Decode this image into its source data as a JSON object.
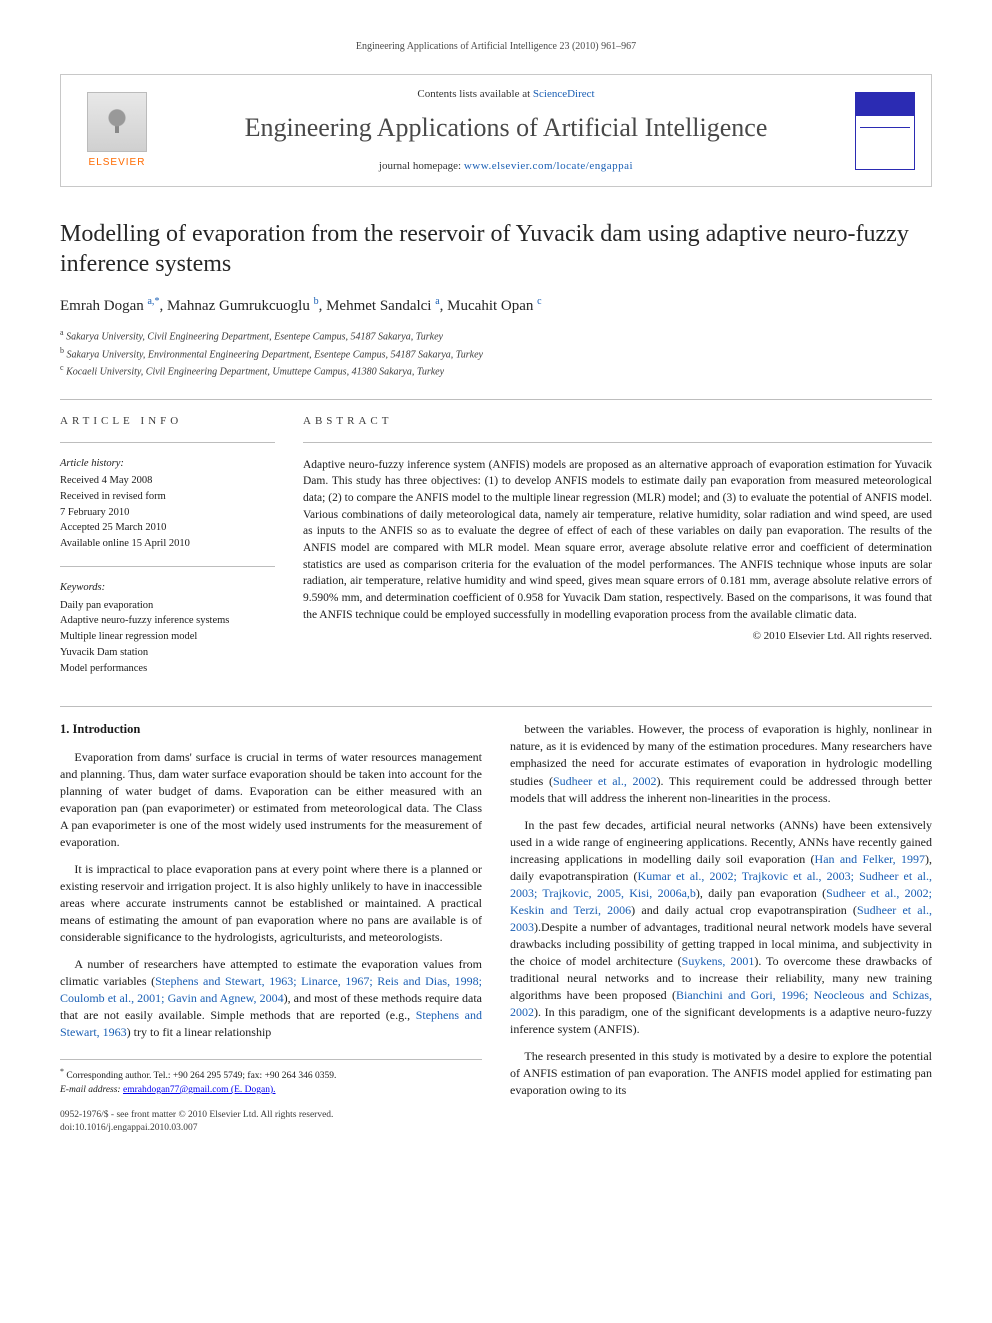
{
  "page_header": "Engineering Applications of Artificial Intelligence 23 (2010) 961–967",
  "banner": {
    "contents_prefix": "Contents lists available at ",
    "contents_link": "ScienceDirect",
    "journal_name": "Engineering Applications of Artificial Intelligence",
    "homepage_prefix": "journal homepage: ",
    "homepage_url": "www.elsevier.com/locate/engappai",
    "publisher": "ELSEVIER"
  },
  "title": "Modelling of evaporation from the reservoir of Yuvacik dam using adaptive neuro-fuzzy inference systems",
  "authors": [
    {
      "name": "Emrah Dogan",
      "affil": "a,",
      "corr": "*"
    },
    {
      "name": "Mahnaz Gumrukcuoglu",
      "affil": "b"
    },
    {
      "name": "Mehmet Sandalci",
      "affil": "a"
    },
    {
      "name": "Mucahit Opan",
      "affil": "c"
    }
  ],
  "affiliations": {
    "a": "Sakarya University, Civil Engineering Department, Esentepe Campus, 54187 Sakarya, Turkey",
    "b": "Sakarya University, Environmental Engineering Department, Esentepe Campus, 54187 Sakarya, Turkey",
    "c": "Kocaeli University, Civil Engineering Department, Umuttepe Campus, 41380 Sakarya, Turkey"
  },
  "info_heading": "ARTICLE INFO",
  "abstract_heading": "ABSTRACT",
  "history_label": "Article history:",
  "history": [
    "Received 4 May 2008",
    "Received in revised form",
    "7 February 2010",
    "Accepted 25 March 2010",
    "Available online 15 April 2010"
  ],
  "keywords_label": "Keywords:",
  "keywords": [
    "Daily pan evaporation",
    "Adaptive neuro-fuzzy inference systems",
    "Multiple linear regression model",
    "Yuvacik Dam station",
    "Model performances"
  ],
  "abstract_text": "Adaptive neuro-fuzzy inference system (ANFIS) models are proposed as an alternative approach of evaporation estimation for Yuvacik Dam. This study has three objectives: (1) to develop ANFIS models to estimate daily pan evaporation from measured meteorological data; (2) to compare the ANFIS model to the multiple linear regression (MLR) model; and (3) to evaluate the potential of ANFIS model. Various combinations of daily meteorological data, namely air temperature, relative humidity, solar radiation and wind speed, are used as inputs to the ANFIS so as to evaluate the degree of effect of each of these variables on daily pan evaporation. The results of the ANFIS model are compared with MLR model. Mean square error, average absolute relative error and coefficient of determination statistics are used as comparison criteria for the evaluation of the model performances. The ANFIS technique whose inputs are solar radiation, air temperature, relative humidity and wind speed, gives mean square errors of 0.181 mm, average absolute relative errors of 9.590% mm, and determination coefficient of 0.958 for Yuvacik Dam station, respectively. Based on the comparisons, it was found that the ANFIS technique could be employed successfully in modelling evaporation process from the available climatic data.",
  "abstract_copyright": "© 2010 Elsevier Ltd. All rights reserved.",
  "section1_heading": "1. Introduction",
  "col_left": [
    "Evaporation from dams' surface is crucial in terms of water resources management and planning. Thus, dam water surface evaporation should be taken into account for the planning of water budget of dams. Evaporation can be either measured with an evaporation pan (pan evaporimeter) or estimated from meteorological data. The Class A pan evaporimeter is one of the most widely used instruments for the measurement of evaporation.",
    "It is impractical to place evaporation pans at every point where there is a planned or existing reservoir and irrigation project. It is also highly unlikely to have in inaccessible areas where accurate instruments cannot be established or maintained. A practical means of estimating the amount of pan evaporation where no pans are available is of considerable significance to the hydrologists, agriculturists, and meteorologists.",
    "A number of researchers have attempted to estimate the evaporation values from climatic variables (<span class=\"ref\">Stephens and Stewart, 1963; Linarce, 1967; Reis and Dias, 1998; Coulomb et al., 2001; Gavin and Agnew, 2004</span>), and most of these methods require data that are not easily available. Simple methods that are reported (e.g., <span class=\"ref\">Stephens and Stewart, 1963</span>) try to fit a linear relationship"
  ],
  "col_right": [
    "between the variables. However, the process of evaporation is highly, nonlinear in nature, as it is evidenced by many of the estimation procedures. Many researchers have emphasized the need for accurate estimates of evaporation in hydrologic modelling studies (<span class=\"ref\">Sudheer et al., 2002</span>). This requirement could be addressed through better models that will address the inherent non-linearities in the process.",
    "In the past few decades, artificial neural networks (ANNs) have been extensively used in a wide range of engineering applications. Recently, ANNs have recently gained increasing applications in modelling daily soil evaporation (<span class=\"ref\">Han and Felker, 1997</span>), daily evapotranspiration (<span class=\"ref\">Kumar et al., 2002; Trajkovic et al., 2003; Sudheer et al., 2003; Trajkovic, 2005, Kisi, 2006a,b</span>), daily pan evaporation (<span class=\"ref\">Sudheer et al., 2002; Keskin and Terzi, 2006</span>) and daily actual crop evapotranspiration (<span class=\"ref\">Sudheer et al., 2003</span>).Despite a number of advantages, traditional neural network models have several drawbacks including possibility of getting trapped in local minima, and subjectivity in the choice of model architecture (<span class=\"ref\">Suykens, 2001</span>). To overcome these drawbacks of traditional neural networks and to increase their reliability, many new training algorithms have been proposed (<span class=\"ref\">Bianchini and Gori, 1996; Neocleous and Schizas, 2002</span>). In this paradigm, one of the significant developments is a adaptive neuro-fuzzy inference system (ANFIS).",
    "The research presented in this study is motivated by a desire to explore the potential of ANFIS estimation of pan evaporation. The ANFIS model applied for estimating pan evaporation owing to its"
  ],
  "footnotes": {
    "corr": "Corresponding author. Tel.: +90 264 295 5749; fax: +90 264 346 0359.",
    "email_label": "E-mail address:",
    "email": "emrahdogan77@gmail.com (E. Dogan)."
  },
  "doi": {
    "line1": "0952-1976/$ - see front matter © 2010 Elsevier Ltd. All rights reserved.",
    "line2": "doi:10.1016/j.engappai.2010.03.007"
  }
}
